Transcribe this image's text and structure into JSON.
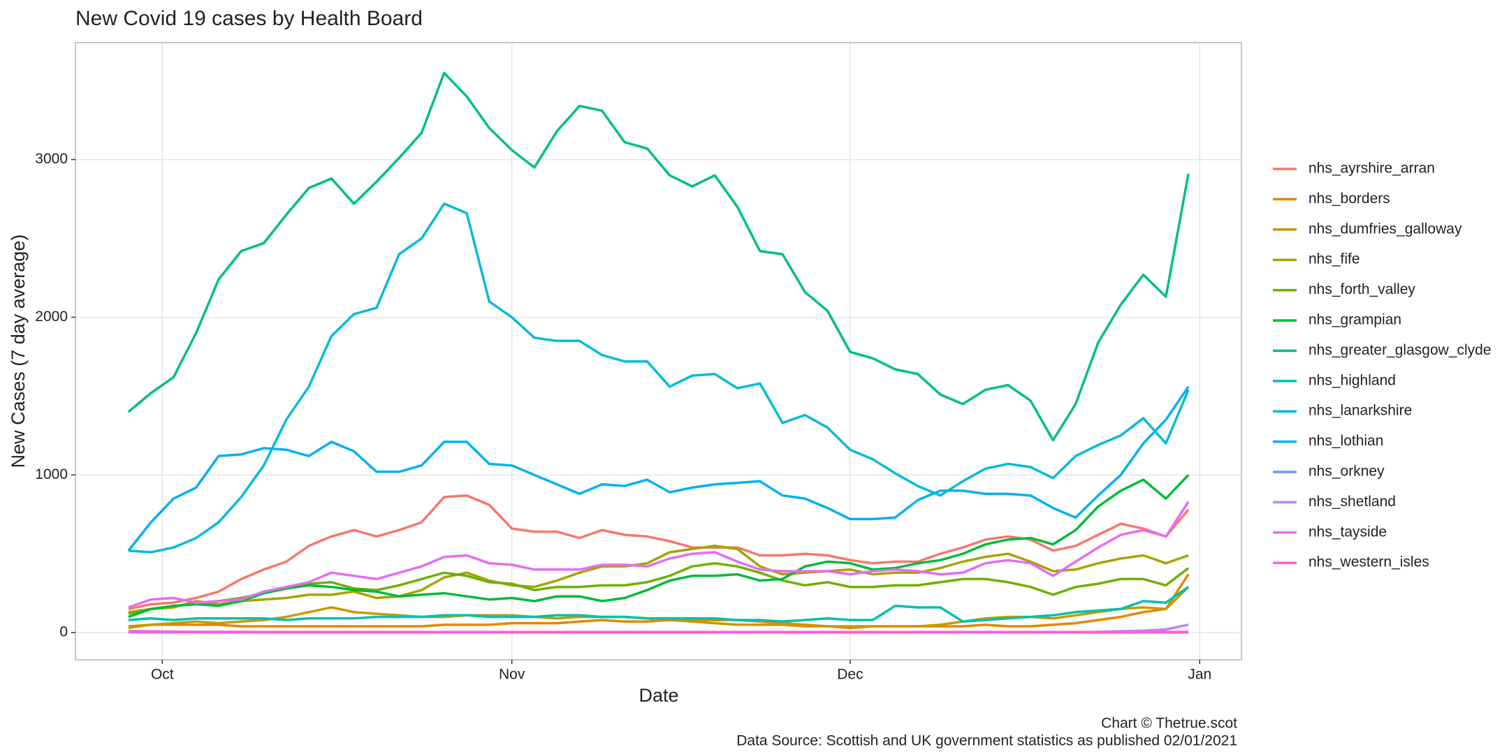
{
  "chart_data": {
    "type": "line",
    "title": "New Covid 19 cases by Health Board",
    "x_label": "Date",
    "y_label": "New Cases (7 day average)",
    "caption": [
      "Chart © Thetrue.scot",
      "Data Source: Scottish and UK government statistics as published 02/01/2021"
    ],
    "x": [
      -3,
      -1,
      1,
      3,
      5,
      7,
      9,
      11,
      13,
      15,
      17,
      19,
      21,
      23,
      25,
      27,
      29,
      31,
      33,
      35,
      37,
      39,
      41,
      43,
      45,
      47,
      49,
      51,
      53,
      55,
      57,
      59,
      61,
      63,
      65,
      67,
      69,
      71,
      73,
      75,
      77,
      79,
      81,
      83,
      85,
      87,
      89,
      91
    ],
    "xlim": [
      -7.7,
      95.7
    ],
    "xticks": [
      {
        "value": 0,
        "label": "Oct"
      },
      {
        "value": 31,
        "label": "Nov"
      },
      {
        "value": 61,
        "label": "Dec"
      },
      {
        "value": 92,
        "label": "Jan"
      }
    ],
    "ylim": [
      -172,
      3742
    ],
    "yticks": [
      0,
      1000,
      2000,
      3000
    ],
    "grid": true,
    "legend": "right",
    "series": [
      {
        "name": "nhs_ayrshire_arran",
        "color": "#F8766D",
        "values": [
          150,
          180,
          190,
          220,
          260,
          340,
          400,
          450,
          550,
          610,
          650,
          610,
          650,
          700,
          860,
          870,
          810,
          660,
          640,
          640,
          600,
          650,
          620,
          610,
          580,
          540,
          540,
          540,
          490,
          490,
          500,
          490,
          460,
          440,
          450,
          450,
          500,
          540,
          590,
          610,
          590,
          520,
          550,
          620,
          690,
          660,
          610,
          780
        ]
      },
      {
        "name": "nhs_borders",
        "color": "#E58700",
        "values": [
          40,
          50,
          50,
          50,
          50,
          40,
          40,
          40,
          40,
          40,
          40,
          40,
          40,
          40,
          50,
          50,
          50,
          60,
          60,
          60,
          70,
          80,
          70,
          70,
          80,
          80,
          80,
          80,
          70,
          60,
          50,
          40,
          30,
          40,
          40,
          40,
          40,
          40,
          50,
          40,
          40,
          50,
          60,
          80,
          100,
          130,
          150,
          370
        ]
      },
      {
        "name": "nhs_dumfries_galloway",
        "color": "#C99800",
        "values": [
          30,
          50,
          60,
          70,
          60,
          70,
          80,
          100,
          130,
          160,
          130,
          120,
          110,
          100,
          100,
          110,
          110,
          110,
          100,
          90,
          100,
          100,
          100,
          90,
          80,
          70,
          60,
          50,
          50,
          50,
          40,
          40,
          40,
          40,
          40,
          40,
          50,
          70,
          90,
          100,
          100,
          90,
          110,
          130,
          150,
          160,
          150,
          290
        ]
      },
      {
        "name": "nhs_fife",
        "color": "#A3A500",
        "values": [
          130,
          150,
          160,
          200,
          180,
          200,
          210,
          220,
          240,
          240,
          260,
          220,
          230,
          270,
          350,
          380,
          330,
          300,
          290,
          330,
          380,
          420,
          420,
          440,
          510,
          530,
          550,
          530,
          420,
          370,
          380,
          390,
          400,
          370,
          380,
          380,
          410,
          450,
          480,
          500,
          450,
          390,
          400,
          440,
          470,
          490,
          440,
          490
        ]
      },
      {
        "name": "nhs_forth_valley",
        "color": "#6BB100",
        "values": [
          120,
          150,
          170,
          180,
          200,
          220,
          250,
          280,
          310,
          320,
          280,
          270,
          300,
          340,
          380,
          360,
          320,
          310,
          270,
          290,
          290,
          300,
          300,
          320,
          360,
          420,
          440,
          420,
          380,
          330,
          300,
          320,
          290,
          290,
          300,
          300,
          320,
          340,
          340,
          320,
          290,
          240,
          290,
          310,
          340,
          340,
          300,
          410
        ]
      },
      {
        "name": "nhs_grampian",
        "color": "#00BA38",
        "values": [
          100,
          150,
          170,
          180,
          170,
          200,
          250,
          280,
          300,
          290,
          270,
          260,
          230,
          240,
          250,
          230,
          210,
          220,
          200,
          230,
          230,
          200,
          220,
          270,
          330,
          360,
          360,
          370,
          330,
          340,
          420,
          450,
          440,
          400,
          410,
          440,
          460,
          500,
          560,
          590,
          600,
          560,
          650,
          800,
          900,
          970,
          850,
          1000
        ]
      },
      {
        "name": "nhs_greater_glasgow_clyde",
        "color": "#00BF7D",
        "values": [
          1400,
          1520,
          1620,
          1900,
          2240,
          2420,
          2470,
          2650,
          2820,
          2880,
          2720,
          2860,
          3010,
          3170,
          3550,
          3400,
          3200,
          3060,
          2950,
          3180,
          3340,
          3310,
          3110,
          3070,
          2900,
          2830,
          2900,
          2700,
          2420,
          2400,
          2160,
          2040,
          1780,
          1740,
          1670,
          1640,
          1510,
          1450,
          1540,
          1570,
          1470,
          1220,
          1450,
          1840,
          2080,
          2270,
          2130,
          2910
        ]
      },
      {
        "name": "nhs_highland",
        "color": "#00C0AF",
        "values": [
          80,
          90,
          80,
          90,
          90,
          90,
          90,
          80,
          90,
          90,
          90,
          100,
          100,
          100,
          110,
          110,
          100,
          100,
          100,
          110,
          110,
          100,
          100,
          90,
          90,
          90,
          90,
          80,
          80,
          70,
          80,
          90,
          80,
          80,
          170,
          160,
          160,
          70,
          80,
          90,
          100,
          110,
          130,
          140,
          150,
          200,
          190,
          290
        ]
      },
      {
        "name": "nhs_lanarkshire",
        "color": "#00BCD8",
        "values": [
          520,
          510,
          540,
          600,
          700,
          860,
          1060,
          1350,
          1560,
          1880,
          2020,
          2060,
          2400,
          2500,
          2720,
          2660,
          2100,
          2000,
          1870,
          1850,
          1850,
          1760,
          1720,
          1720,
          1560,
          1630,
          1640,
          1550,
          1580,
          1330,
          1380,
          1300,
          1160,
          1100,
          1010,
          930,
          870,
          960,
          1040,
          1070,
          1050,
          980,
          1120,
          1190,
          1250,
          1360,
          1200,
          1540
        ]
      },
      {
        "name": "nhs_lothian",
        "color": "#00B0F6",
        "values": [
          520,
          700,
          850,
          920,
          1120,
          1130,
          1170,
          1160,
          1120,
          1210,
          1150,
          1020,
          1020,
          1060,
          1210,
          1210,
          1070,
          1060,
          1000,
          940,
          880,
          940,
          930,
          970,
          890,
          920,
          940,
          950,
          960,
          870,
          850,
          790,
          720,
          720,
          730,
          840,
          900,
          900,
          880,
          880,
          870,
          790,
          730,
          870,
          1000,
          1200,
          1350,
          1560
        ]
      },
      {
        "name": "nhs_orkney",
        "color": "#619CFF",
        "values": [
          1,
          1,
          1,
          1,
          1,
          1,
          1,
          1,
          1,
          1,
          1,
          1,
          1,
          1,
          1,
          1,
          1,
          1,
          1,
          1,
          1,
          1,
          1,
          1,
          1,
          1,
          1,
          1,
          1,
          1,
          1,
          1,
          1,
          1,
          1,
          1,
          1,
          1,
          1,
          1,
          1,
          1,
          1,
          1,
          1,
          1,
          1,
          1
        ]
      },
      {
        "name": "nhs_shetland",
        "color": "#B983FF",
        "values": [
          3,
          3,
          3,
          3,
          3,
          3,
          3,
          3,
          3,
          3,
          3,
          3,
          3,
          3,
          3,
          3,
          3,
          3,
          3,
          3,
          3,
          3,
          3,
          3,
          3,
          3,
          3,
          3,
          3,
          3,
          3,
          3,
          3,
          3,
          3,
          3,
          3,
          3,
          3,
          3,
          3,
          3,
          3,
          5,
          8,
          12,
          20,
          50
        ]
      },
      {
        "name": "nhs_tayside",
        "color": "#E76BF3",
        "values": [
          160,
          210,
          220,
          190,
          200,
          210,
          260,
          290,
          320,
          380,
          360,
          340,
          380,
          420,
          480,
          490,
          440,
          430,
          400,
          400,
          400,
          430,
          430,
          420,
          470,
          500,
          510,
          450,
          400,
          390,
          390,
          390,
          370,
          390,
          400,
          390,
          370,
          380,
          440,
          460,
          440,
          360,
          450,
          540,
          620,
          650,
          610,
          830
        ]
      },
      {
        "name": "nhs_western_isles",
        "color": "#FD61D1",
        "values": [
          10,
          8,
          6,
          5,
          5,
          5,
          4,
          4,
          4,
          4,
          4,
          4,
          4,
          4,
          4,
          4,
          4,
          4,
          4,
          4,
          4,
          4,
          4,
          4,
          4,
          4,
          4,
          4,
          4,
          4,
          4,
          4,
          4,
          4,
          4,
          4,
          4,
          4,
          4,
          4,
          4,
          4,
          4,
          4,
          4,
          4,
          4,
          5
        ]
      }
    ]
  }
}
